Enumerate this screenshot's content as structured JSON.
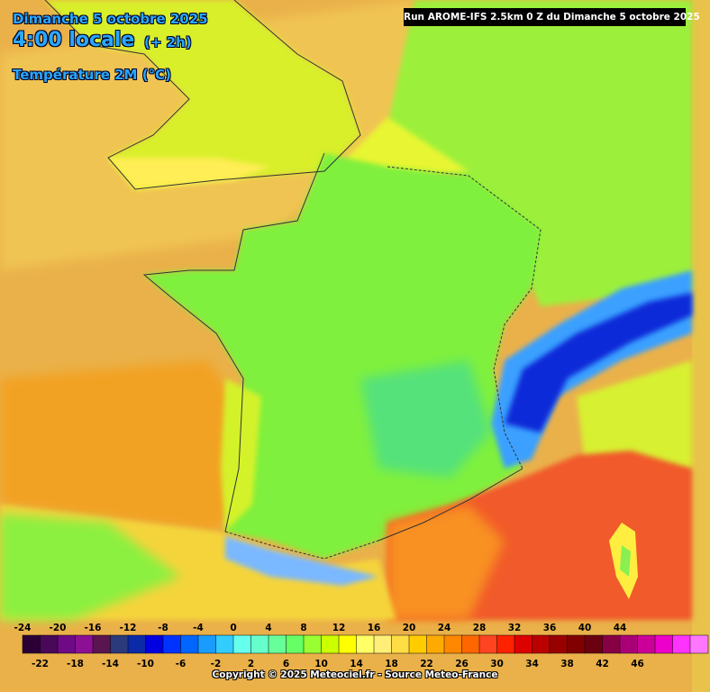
{
  "header": {
    "date": "Dimanche 5 octobre 2025",
    "time": "4:00 locale",
    "offset": "(+ 2h)",
    "parameter": "Température 2M (°C)"
  },
  "run_info": "Run AROME-IFS 2.5km 0 Z du Dimanche 5 octobre 2025",
  "legend": {
    "colors": [
      "#2b0035",
      "#4a0858",
      "#6e0a86",
      "#8c1094",
      "#5a1450",
      "#2a3a7a",
      "#0a2aa8",
      "#0000e0",
      "#0033ff",
      "#0066ff",
      "#1a9cff",
      "#33ccff",
      "#66ffee",
      "#66ffcc",
      "#66ff99",
      "#66ff66",
      "#99ff33",
      "#ccff00",
      "#ffff00",
      "#ffff66",
      "#ffee77",
      "#ffdd44",
      "#ffcc00",
      "#ffaa00",
      "#ff8800",
      "#ff6600",
      "#ff4422",
      "#ff2200",
      "#dd0000",
      "#bb0000",
      "#990000",
      "#800000",
      "#6a0010",
      "#880044",
      "#aa0077",
      "#cc0099",
      "#ee00cc",
      "#ff33ff",
      "#ff77ff"
    ],
    "top_ticks": [
      "-24",
      "-20",
      "-16",
      "-12",
      "-8",
      "-4",
      "0",
      "4",
      "8",
      "12",
      "16",
      "20",
      "24",
      "28",
      "32",
      "36",
      "40",
      "44"
    ],
    "bottom_ticks": [
      "-22",
      "-18",
      "-14",
      "-10",
      "-6",
      "-2",
      "2",
      "6",
      "10",
      "14",
      "18",
      "22",
      "26",
      "30",
      "34",
      "38",
      "42",
      "46"
    ]
  },
  "copyright": "Copyright © 2025 Meteociel.fr - Source Meteo-France"
}
